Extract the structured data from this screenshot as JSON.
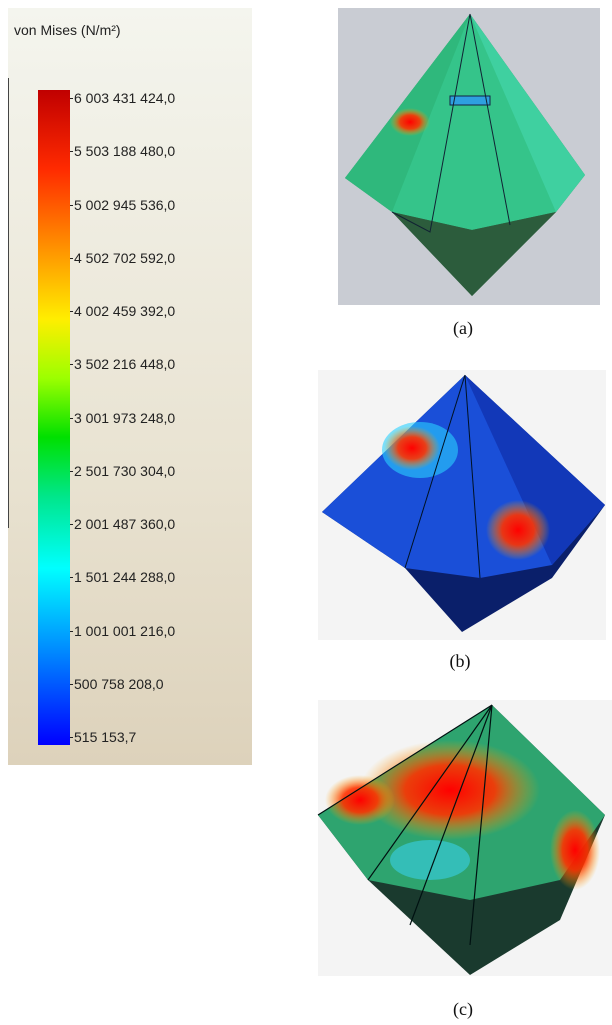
{
  "legend": {
    "title": "von Mises (N/m²)",
    "labels": [
      "6 003 431 424,0",
      "5 503 188 480,0",
      "5 002 945 536,0",
      "4 502 702 592,0",
      "4 002 459 392,0",
      "3 502 216 448,0",
      "3 001 973 248,0",
      "2 501 730 304,0",
      "2 001 487 360,0",
      "1 501 244 288,0",
      "1 001 001 216,0",
      "500 758 208,0",
      "515 153,7"
    ]
  },
  "panels": [
    {
      "caption": "(a)"
    },
    {
      "caption": "(b)"
    },
    {
      "caption": "(c)"
    }
  ]
}
